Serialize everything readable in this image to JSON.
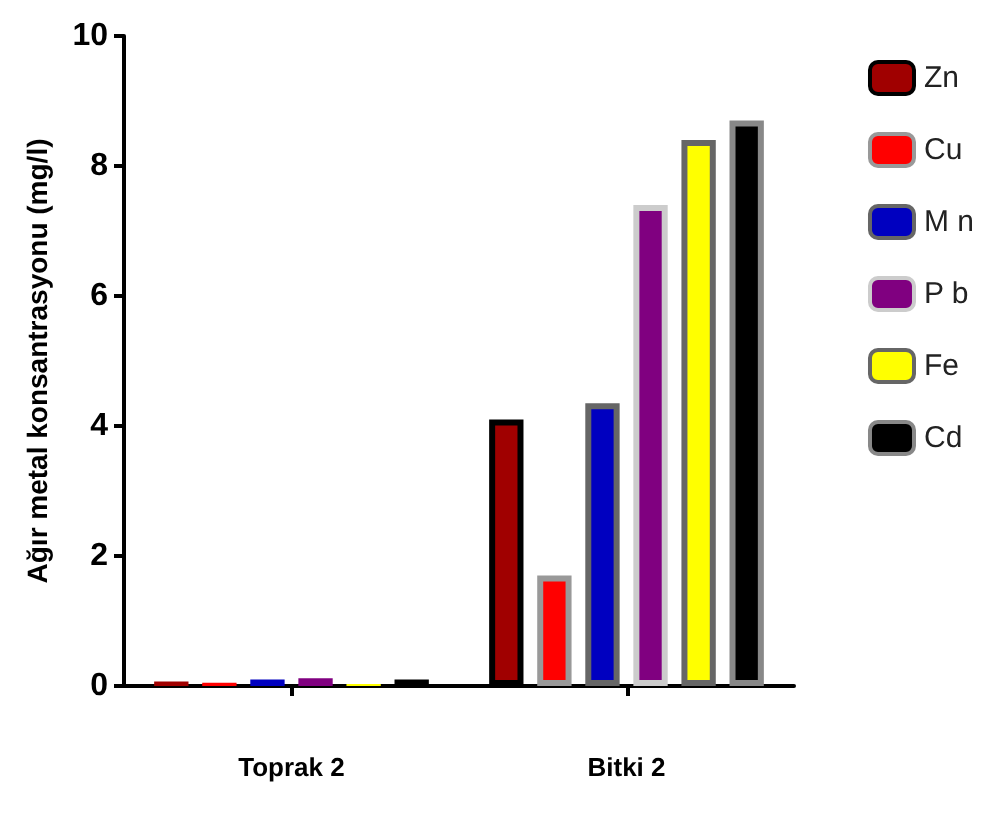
{
  "chart_data": {
    "type": "bar",
    "ylabel": "Ağır metal konsantrasyonu (mg/l)",
    "categories": [
      "Toprak 2",
      "Bitki 2"
    ],
    "series": [
      {
        "name": "Zn",
        "color": "#a00000",
        "values": [
          0.07,
          4.1
        ]
      },
      {
        "name": "Cu",
        "color": "#ff0000",
        "values": [
          0.05,
          1.7
        ]
      },
      {
        "name": "M n",
        "color": "#0000c0",
        "values": [
          0.1,
          4.35
        ]
      },
      {
        "name": "P b",
        "color": "#800080",
        "values": [
          0.12,
          7.4
        ]
      },
      {
        "name": "Fe",
        "color": "#ffff00",
        "values": [
          0.03,
          8.4
        ]
      },
      {
        "name": "Cd",
        "color": "#000000",
        "values": [
          0.1,
          8.7
        ]
      }
    ],
    "ylim": [
      0,
      10
    ],
    "yticks": [
      0,
      2,
      4,
      6,
      8,
      10
    ],
    "grid": false,
    "legend": "right"
  }
}
